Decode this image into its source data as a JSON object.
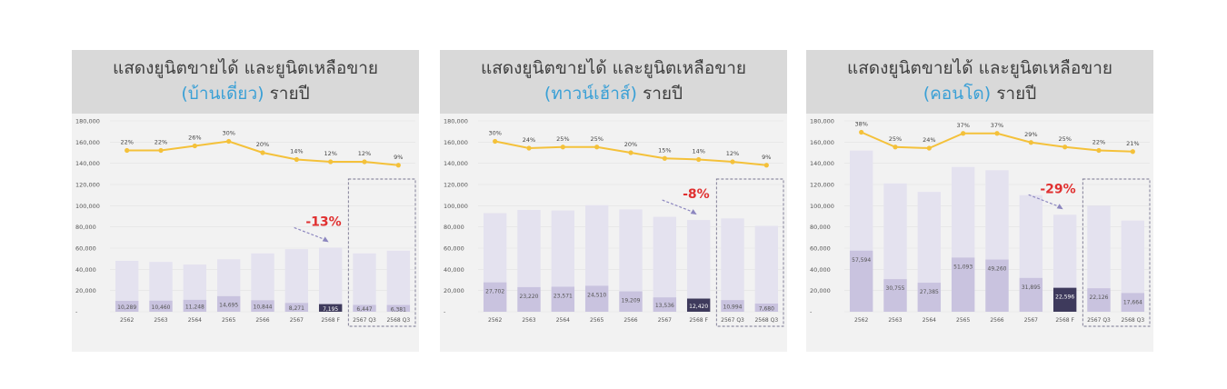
{
  "chart_data": [
    {
      "type": "bar",
      "title_line1": "แสดงยูนิตขายได้ และยูนิตเหลือขาย",
      "title_type": "(บ้านเดี่ยว)",
      "title_suffix": "รายปี",
      "categories": [
        "2562",
        "2563",
        "2564",
        "2565",
        "2566",
        "2567",
        "2568 F",
        "2567 Q3",
        "2568 Q3"
      ],
      "yticks": [
        "180,000",
        "160,000",
        "140,000",
        "120,000",
        "100,000",
        "80,000",
        "60,000",
        "40,000",
        "20,000",
        "-"
      ],
      "ylim": [
        0,
        180000
      ],
      "total_values": [
        48000,
        47000,
        44500,
        49500,
        55000,
        59000,
        60500,
        55000,
        57500
      ],
      "sold_values": [
        10289,
        10460,
        11248,
        14695,
        10844,
        8271,
        7195,
        6447,
        6381
      ],
      "sold_labels": [
        "10,289",
        "10,460",
        "11,248",
        "14,695",
        "10,844",
        "8,271",
        "7,195",
        "6,447",
        "6,381"
      ],
      "highlight_index": 6,
      "line_values": [
        22,
        22,
        26,
        30,
        20,
        14,
        12,
        12,
        9
      ],
      "line_labels": [
        "22%",
        "22%",
        "26%",
        "30%",
        "20%",
        "14%",
        "12%",
        "12%",
        "9%"
      ],
      "change_label": "-13%",
      "colors": {
        "total": "#e4e2ef",
        "sold": "#c9c3df",
        "highlight": "#3e3a5c",
        "line": "#f4c13a",
        "change": "#e03030",
        "arrow": "#8c86bf"
      }
    },
    {
      "type": "bar",
      "title_line1": "แสดงยูนิตขายได้ และยูนิตเหลือขาย",
      "title_type": "(ทาวน์เฮ้าส์)",
      "title_suffix": "รายปี",
      "categories": [
        "2562",
        "2563",
        "2564",
        "2565",
        "2566",
        "2567",
        "2568 F",
        "2567 Q3",
        "2568 Q3"
      ],
      "yticks": [
        "180,000",
        "160,000",
        "140,000",
        "120,000",
        "100,000",
        "80,000",
        "60,000",
        "40,000",
        "20,000",
        "-"
      ],
      "ylim": [
        0,
        180000
      ],
      "total_values": [
        93000,
        96000,
        95500,
        100500,
        96500,
        89500,
        86500,
        88000,
        81000
      ],
      "sold_values": [
        27702,
        23220,
        23571,
        24510,
        19209,
        13536,
        12420,
        10994,
        7680
      ],
      "sold_labels": [
        "27,702",
        "23,220",
        "23,571",
        "24,510",
        "19,209",
        "13,536",
        "12,420",
        "10,994",
        "7,680"
      ],
      "highlight_index": 6,
      "line_values": [
        30,
        24,
        25,
        25,
        20,
        15,
        14,
        12,
        9
      ],
      "line_labels": [
        "30%",
        "24%",
        "25%",
        "25%",
        "20%",
        "15%",
        "14%",
        "12%",
        "9%"
      ],
      "change_label": "-8%",
      "colors": {
        "total": "#e4e2ef",
        "sold": "#c9c3df",
        "highlight": "#3e3a5c",
        "line": "#f4c13a",
        "change": "#e03030",
        "arrow": "#8c86bf"
      }
    },
    {
      "type": "bar",
      "title_line1": "แสดงยูนิตขายได้ และยูนิตเหลือขาย",
      "title_type": "(คอนโด)",
      "title_suffix": "รายปี",
      "categories": [
        "2562",
        "2563",
        "2564",
        "2565",
        "2566",
        "2567",
        "2568 F",
        "2567 Q3",
        "2568 Q3"
      ],
      "yticks": [
        "180,000",
        "160,000",
        "140,000",
        "120,000",
        "100,000",
        "80,000",
        "60,000",
        "40,000",
        "20,000",
        "-"
      ],
      "ylim": [
        0,
        180000
      ],
      "total_values": [
        152000,
        121000,
        113000,
        136500,
        133500,
        110000,
        91500,
        100000,
        86000
      ],
      "sold_values": [
        57594,
        30755,
        27385,
        51093,
        49260,
        31895,
        22596,
        22126,
        17664
      ],
      "sold_labels": [
        "57,594",
        "30,755",
        "27,385",
        "51,093",
        "49,260",
        "31,895",
        "22,596",
        "22,126",
        "17,664"
      ],
      "highlight_index": 6,
      "line_values": [
        38,
        25,
        24,
        37,
        37,
        29,
        25,
        22,
        21
      ],
      "line_labels": [
        "38%",
        "25%",
        "24%",
        "37%",
        "37%",
        "29%",
        "25%",
        "22%",
        "21%"
      ],
      "change_label": "-29%",
      "colors": {
        "total": "#e4e2ef",
        "sold": "#c9c3df",
        "highlight": "#3e3a5c",
        "line": "#f4c13a",
        "change": "#e03030",
        "arrow": "#8c86bf"
      }
    }
  ]
}
